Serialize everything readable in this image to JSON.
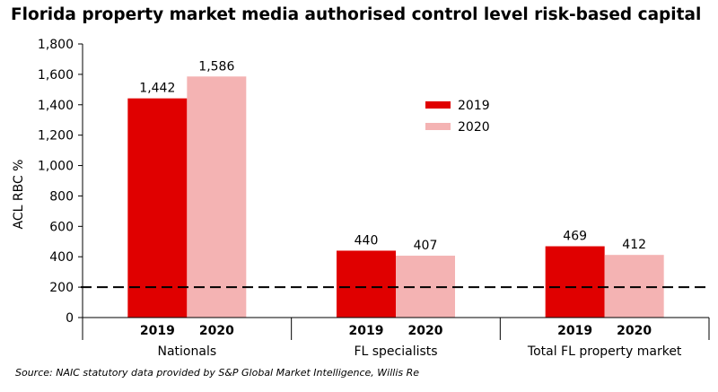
{
  "chart_data": {
    "type": "bar",
    "title": "Florida property market media authorised control level risk-based capital",
    "ylabel": "ACL RBC %",
    "xlabel": "",
    "ylim": [
      0,
      1800
    ],
    "yticks": [
      0,
      200,
      400,
      600,
      800,
      1000,
      1200,
      1400,
      1600,
      1800
    ],
    "ytick_labels": [
      "0",
      "200",
      "400",
      "600",
      "800",
      "1,000",
      "1,200",
      "1,400",
      "1,600",
      "1,800"
    ],
    "categories": [
      "Nationals",
      "FL specialists",
      "Total FL property market"
    ],
    "series": [
      {
        "name": "2019",
        "color": "#e00000",
        "values": [
          1442,
          440,
          469
        ],
        "labels": [
          "1,442",
          "440",
          "469"
        ]
      },
      {
        "name": "2020",
        "color": "#f4b3b3",
        "values": [
          1586,
          407,
          412
        ],
        "labels": [
          "1,586",
          "407",
          "412"
        ]
      }
    ],
    "reference_line": {
      "value": 200,
      "style": "dashed",
      "color": "#000000"
    },
    "legend": {
      "placement": "top-center",
      "items": [
        "2019",
        "2020"
      ]
    },
    "grid": false
  },
  "source_note": "Source: NAIC statutory data provided by S&P Global Market Intelligence, Willis Re"
}
